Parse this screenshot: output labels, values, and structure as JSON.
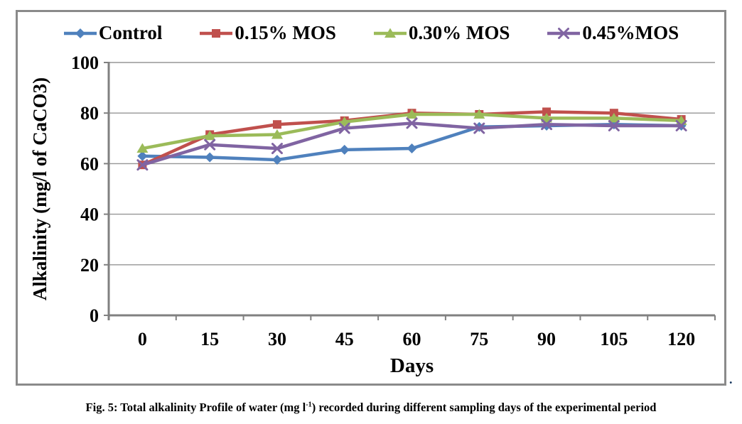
{
  "figure": {
    "caption": {
      "prefix": "Fig. 5: Total alkalinity Profile of water (mg l",
      "superscript": "-1",
      "suffix": ") recorded during different sampling days of the experimental period"
    },
    "trailing_period": "."
  },
  "colors": {
    "axis": "#808080",
    "gridline": "#969696",
    "frame": "#8a8a8a",
    "text": "#000000"
  },
  "chart_data": {
    "type": "line",
    "title": "",
    "xlabel": "Days",
    "ylabel": "Alkalinity (mg/l of CaCO3)",
    "x_categories": [
      "0",
      "15",
      "30",
      "45",
      "60",
      "75",
      "90",
      "105",
      "120"
    ],
    "y_ticks": [
      0,
      20,
      40,
      60,
      80,
      100
    ],
    "ylim": [
      0,
      100
    ],
    "grid": "horizontal-only",
    "legend_position": "top",
    "series": [
      {
        "name": "Control",
        "color": "#4F81BD",
        "marker": "diamond",
        "values": [
          63,
          62.5,
          61.5,
          65.5,
          66,
          74.5,
          75,
          75.5,
          75
        ]
      },
      {
        "name": "0.15% MOS",
        "color": "#C0504D",
        "marker": "square",
        "values": [
          59.5,
          71.5,
          75.5,
          77,
          80,
          79.5,
          80.5,
          80,
          77.5
        ]
      },
      {
        "name": "0.30% MOS",
        "color": "#9BBB59",
        "marker": "triangle",
        "values": [
          66,
          71,
          71.5,
          76.5,
          79.5,
          79.5,
          78,
          78,
          77
        ]
      },
      {
        "name": "0.45%MOS",
        "color": "#8064A2",
        "marker": "x",
        "values": [
          59.5,
          67.5,
          66,
          74,
          76,
          74,
          75.5,
          75,
          75
        ]
      }
    ]
  }
}
